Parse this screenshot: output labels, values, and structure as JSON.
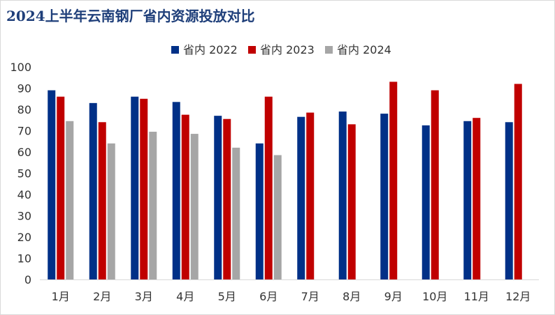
{
  "chart_data": {
    "type": "bar",
    "title": "2024上半年云南钢厂省内资源投放对比",
    "categories": [
      "1月",
      "2月",
      "3月",
      "4月",
      "5月",
      "6月",
      "7月",
      "8月",
      "9月",
      "10月",
      "11月",
      "12月"
    ],
    "series": [
      {
        "name": "省内 2022",
        "color": "#003087",
        "values": [
          89,
          83,
          86,
          83.5,
          77,
          64,
          76.5,
          79,
          78,
          72.5,
          74.5,
          74
        ]
      },
      {
        "name": "省内 2023",
        "color": "#c00000",
        "values": [
          86,
          74,
          85,
          77.5,
          75.5,
          86,
          78.5,
          73,
          93,
          89,
          76,
          92
        ]
      },
      {
        "name": "省内 2024",
        "color": "#a6a6a6",
        "values": [
          74.5,
          64,
          69.5,
          68.5,
          62,
          58.5,
          null,
          null,
          null,
          null,
          null,
          null
        ]
      }
    ],
    "ylim": [
      0,
      100
    ],
    "yticks": [
      0,
      10,
      20,
      30,
      40,
      50,
      60,
      70,
      80,
      90,
      100
    ],
    "legend": "top-center",
    "grid": false
  }
}
